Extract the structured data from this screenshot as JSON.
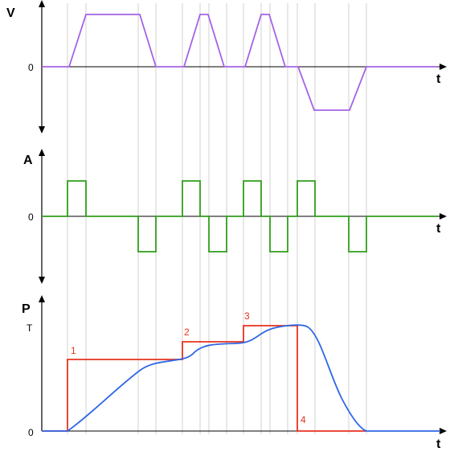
{
  "colors": {
    "velocity": "#a463e6",
    "acceleration": "#2f9e1a",
    "target": "#e8321e",
    "position": "#2f67e6",
    "guide": "#d0d0d0",
    "axis": "#000000"
  },
  "panels": {
    "velocity": {
      "axis_label": "V",
      "zero_label": "0",
      "time_label": "t"
    },
    "acceleration": {
      "axis_label": "A",
      "zero_label": "0",
      "time_label": "t"
    },
    "position": {
      "axis_label": "P",
      "target_label": "T",
      "zero_label": "0",
      "time_label": "t"
    }
  },
  "step_labels": [
    "1",
    "2",
    "3",
    "4"
  ]
}
